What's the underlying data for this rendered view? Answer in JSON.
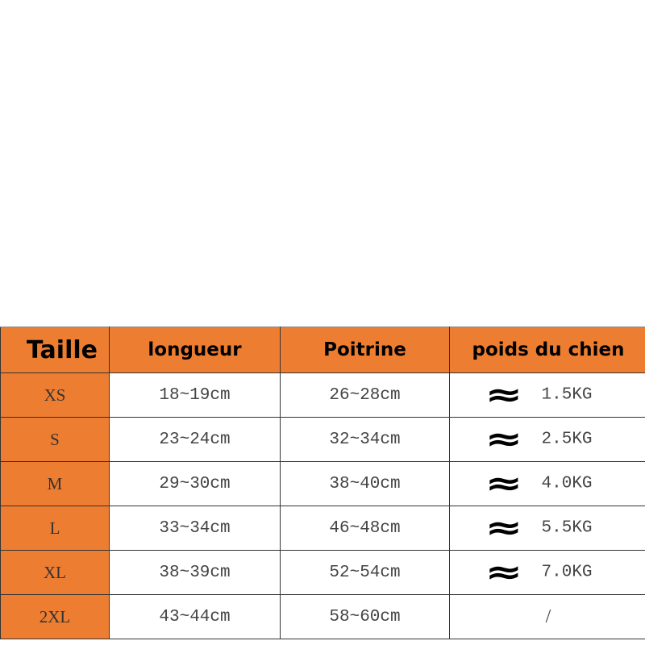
{
  "colors": {
    "header_bg": "#ED7D31",
    "size_bg": "#ED7D31"
  },
  "headers": [
    "Taille",
    "longueur",
    "Poitrine",
    "poids du chien"
  ],
  "approx_icon": "approximately-equal-icon",
  "approx_symbol": "≈",
  "rows": [
    {
      "size": "XS",
      "length": "18~19cm",
      "chest": "26~28cm",
      "weight": "1.5KG"
    },
    {
      "size": "S",
      "length": "23~24cm",
      "chest": "32~34cm",
      "weight": "2.5KG"
    },
    {
      "size": "M",
      "length": "29~30cm",
      "chest": "38~40cm",
      "weight": "4.0KG"
    },
    {
      "size": "L",
      "length": "33~34cm",
      "chest": "46~48cm",
      "weight": "5.5KG"
    },
    {
      "size": "XL",
      "length": "38~39cm",
      "chest": "52~54cm",
      "weight": "7.0KG"
    },
    {
      "size": "2XL",
      "length": "43~44cm",
      "chest": "58~60cm",
      "weight": "/"
    }
  ]
}
